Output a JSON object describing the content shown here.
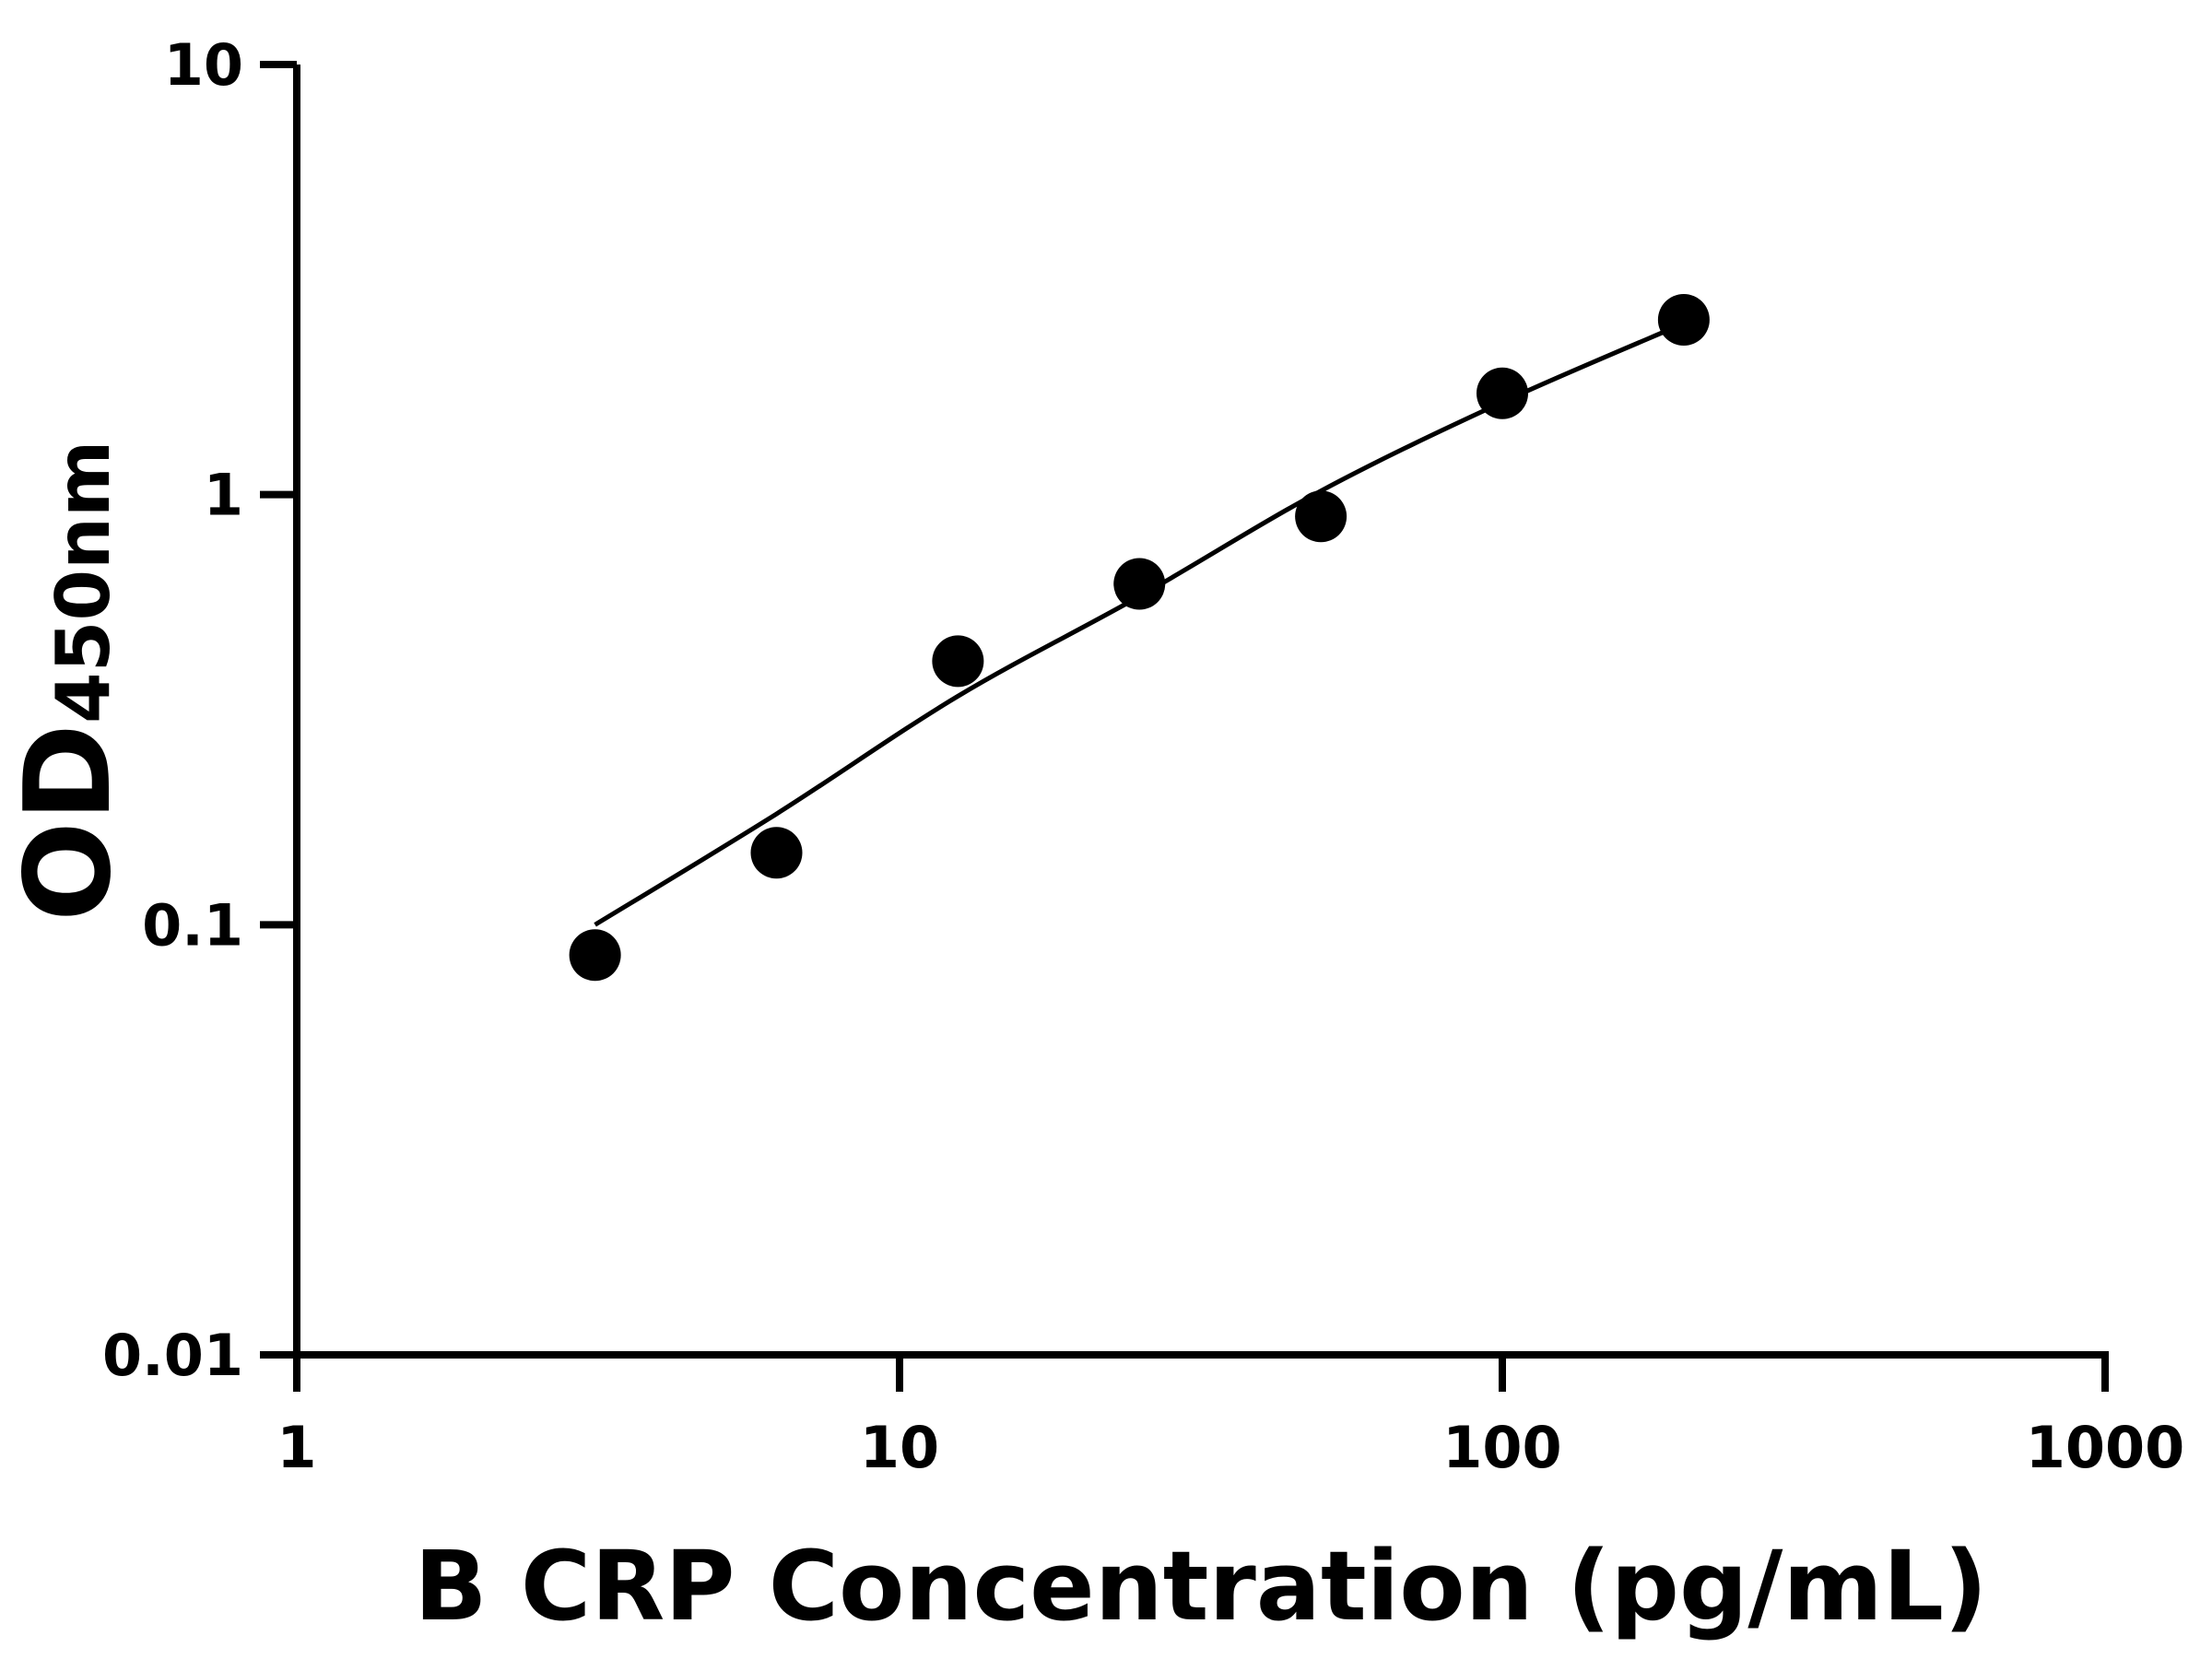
{
  "chart_data": {
    "type": "scatter",
    "xlabel": "B CRP Concentration (pg/mL)",
    "ylabel": "OD",
    "ylabel_subscript": "450nm",
    "x": [
      3.125,
      6.25,
      12.5,
      25,
      50,
      100,
      200
    ],
    "values": [
      0.085,
      0.147,
      0.41,
      0.62,
      0.89,
      1.72,
      2.55
    ],
    "color": "#000000",
    "curve": {
      "x": [
        3.125,
        6.25,
        12.5,
        25,
        50,
        100,
        200
      ],
      "values": [
        0.1,
        0.181,
        0.34,
        0.58,
        1.02,
        1.64,
        2.5
      ]
    },
    "xlim": [
      1,
      1000
    ],
    "xticks": [
      1,
      10,
      100,
      1000
    ],
    "ylim": [
      0.01,
      10
    ],
    "yticks": [
      0.01,
      0.1,
      1,
      10
    ],
    "xscale": "log",
    "yscale": "log"
  }
}
